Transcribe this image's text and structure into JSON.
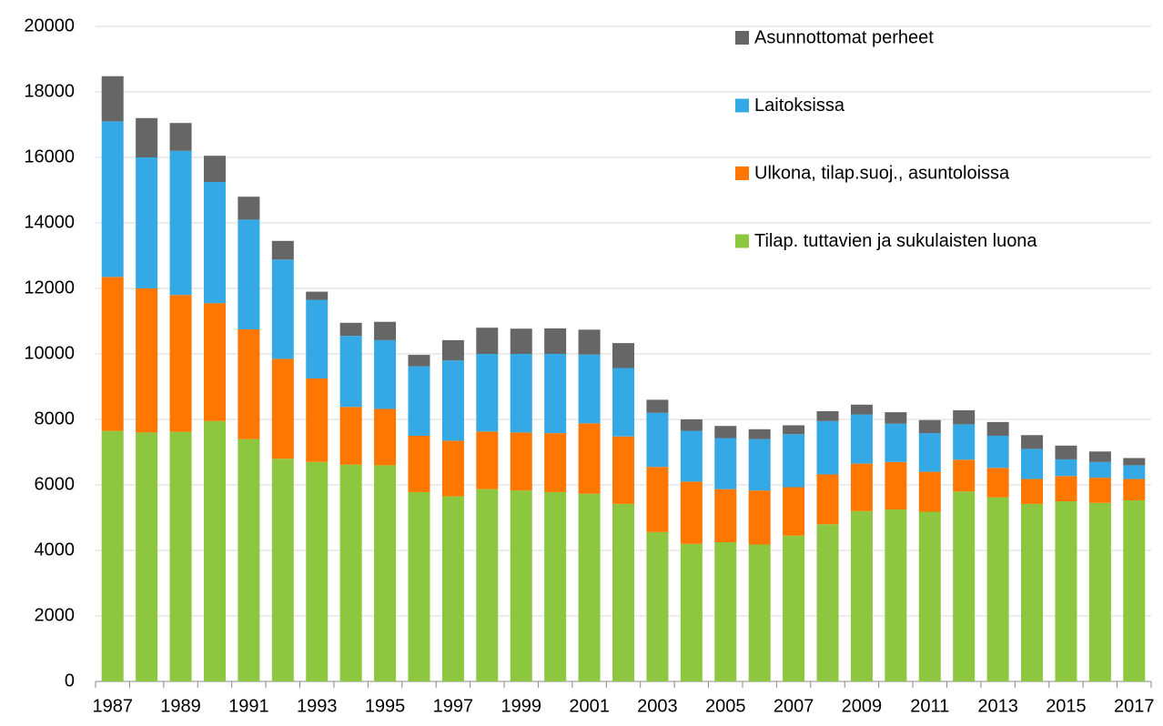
{
  "chart_data": {
    "type": "stacked-bar",
    "categories": [
      "1987",
      null,
      "1989",
      null,
      "1991",
      null,
      "1993",
      null,
      "1995",
      null,
      "1997",
      null,
      "1999",
      null,
      "2001",
      null,
      "2003",
      null,
      "2005",
      null,
      "2007",
      null,
      "2009",
      null,
      "2011",
      null,
      "2013",
      null,
      "2015",
      null,
      "2017"
    ],
    "series": [
      {
        "name": "Tilap. tuttavien ja sukulaisten luona",
        "color": "#8dc63f",
        "values": [
          7650,
          7600,
          7620,
          7950,
          7400,
          6800,
          6700,
          6620,
          6600,
          5780,
          5650,
          5870,
          5830,
          5780,
          5730,
          5420,
          4560,
          4200,
          4250,
          4180,
          4450,
          4800,
          5200,
          5250,
          5180,
          5800,
          5620,
          5420,
          5500,
          5450,
          5530
        ]
      },
      {
        "name": "Ulkona, tilap.suoj., asuntoloissa",
        "color": "#ff7700",
        "values": [
          4700,
          4400,
          4180,
          3600,
          3350,
          3050,
          2550,
          1760,
          1720,
          1720,
          1700,
          1760,
          1770,
          1800,
          2150,
          2060,
          1990,
          1900,
          1620,
          1650,
          1480,
          1520,
          1450,
          1450,
          1220,
          970,
          900,
          760,
          770,
          770,
          650
        ]
      },
      {
        "name": "Laitoksissa",
        "color": "#35a9e6",
        "values": [
          4750,
          4000,
          4400,
          3700,
          3350,
          3030,
          2400,
          2170,
          2100,
          2120,
          2450,
          2370,
          2400,
          2420,
          2100,
          2090,
          1650,
          1550,
          1560,
          1570,
          1620,
          1630,
          1500,
          1170,
          1180,
          1080,
          980,
          920,
          510,
          480,
          420
        ]
      },
      {
        "name": "Asunnottomat perheet",
        "color": "#666666",
        "values": [
          1380,
          1200,
          850,
          800,
          700,
          570,
          250,
          400,
          560,
          350,
          620,
          800,
          770,
          780,
          760,
          760,
          400,
          350,
          370,
          300,
          270,
          300,
          300,
          350,
          400,
          430,
          420,
          420,
          420,
          320,
          220
        ]
      }
    ],
    "ylim": [
      0,
      20000
    ],
    "yticks": [
      0,
      2000,
      4000,
      6000,
      8000,
      10000,
      12000,
      14000,
      16000,
      18000,
      20000
    ],
    "grid": true,
    "legend": "top-right"
  }
}
